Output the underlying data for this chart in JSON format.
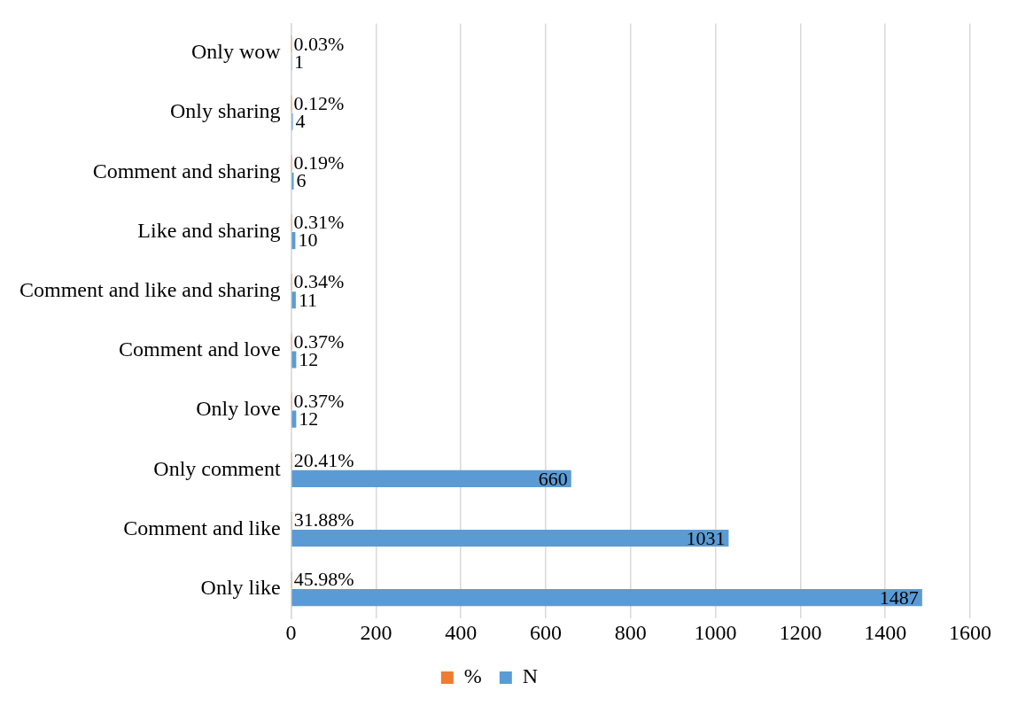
{
  "chart_data": {
    "type": "bar",
    "orientation": "horizontal",
    "categories": [
      "Only wow",
      "Only sharing",
      "Comment and sharing",
      "Like and sharing",
      "Comment and like and sharing",
      "Comment and love",
      "Only love",
      "Only comment",
      "Comment and like",
      "Only like"
    ],
    "series": [
      {
        "name": "%",
        "color": "#ed7d31",
        "values": [
          0.0003,
          0.0012,
          0.0019,
          0.0031,
          0.0034,
          0.0037,
          0.0037,
          0.2041,
          0.3188,
          0.4598
        ],
        "value_labels": [
          "0.03%",
          "0.12%",
          "0.19%",
          "0.31%",
          "0.34%",
          "0.37%",
          "0.37%",
          "20.41%",
          "31.88%",
          "45.98%"
        ]
      },
      {
        "name": "N",
        "color": "#5b9bd5",
        "values": [
          1,
          4,
          6,
          10,
          11,
          12,
          12,
          660,
          1031,
          1487
        ],
        "value_labels": [
          "1",
          "4",
          "6",
          "10",
          "11",
          "12",
          "12",
          "660",
          "1031",
          "1487"
        ]
      }
    ],
    "xlim": [
      0,
      1600
    ],
    "xticks": [
      0,
      200,
      400,
      600,
      800,
      1000,
      1200,
      1400,
      1600
    ],
    "grid": "x",
    "legend": "bottom"
  }
}
